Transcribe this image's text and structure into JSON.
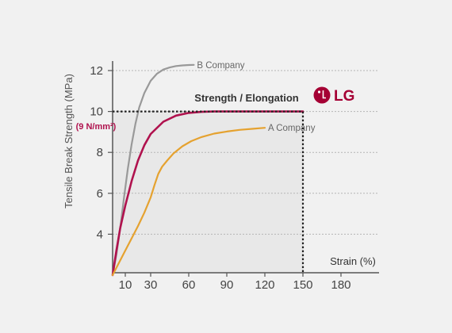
{
  "chart_data": {
    "type": "line",
    "title": "Strength / Elongation",
    "xlabel": "Strain (%)",
    "ylabel": "Tensile Break Strength (MPa)",
    "x_ticks": [
      10,
      30,
      60,
      90,
      120,
      150,
      180
    ],
    "y_ticks": [
      4,
      6,
      8,
      10,
      12
    ],
    "xlim": [
      0,
      180
    ],
    "ylim": [
      2,
      12.5
    ],
    "highlight": {
      "x": 150,
      "y": 10,
      "x_label": "150",
      "y_note": "(9 N/mm²)",
      "color": "#b0124e"
    },
    "logo": {
      "text": "LG",
      "color": "#a50034"
    },
    "series": [
      {
        "name": "B Company",
        "color": "#999999",
        "points": [
          [
            0,
            2
          ],
          [
            3,
            3
          ],
          [
            6,
            4.3
          ],
          [
            9,
            5.8
          ],
          [
            12,
            7.2
          ],
          [
            15,
            8.4
          ],
          [
            18,
            9.4
          ],
          [
            21,
            10.2
          ],
          [
            25,
            10.9
          ],
          [
            30,
            11.5
          ],
          [
            35,
            11.85
          ],
          [
            40,
            12.05
          ],
          [
            45,
            12.15
          ],
          [
            50,
            12.22
          ],
          [
            55,
            12.25
          ],
          [
            60,
            12.27
          ],
          [
            64,
            12.28
          ]
        ]
      },
      {
        "name": "",
        "color": "#b0124e",
        "points": [
          [
            0,
            2
          ],
          [
            3,
            3.2
          ],
          [
            6,
            4.3
          ],
          [
            10,
            5.4
          ],
          [
            15,
            6.6
          ],
          [
            20,
            7.6
          ],
          [
            25,
            8.35
          ],
          [
            30,
            8.9
          ],
          [
            40,
            9.5
          ],
          [
            50,
            9.8
          ],
          [
            60,
            9.93
          ],
          [
            70,
            9.98
          ],
          [
            80,
            10
          ],
          [
            100,
            10
          ],
          [
            120,
            10
          ],
          [
            150,
            10
          ]
        ]
      },
      {
        "name": "A Company",
        "color": "#e5a230",
        "points": [
          [
            0,
            2
          ],
          [
            5,
            2.6
          ],
          [
            10,
            3.2
          ],
          [
            15,
            3.8
          ],
          [
            20,
            4.4
          ],
          [
            25,
            5.05
          ],
          [
            30,
            5.8
          ],
          [
            33,
            6.4
          ],
          [
            36,
            6.95
          ],
          [
            39,
            7.3
          ],
          [
            43,
            7.6
          ],
          [
            48,
            7.95
          ],
          [
            55,
            8.3
          ],
          [
            62,
            8.55
          ],
          [
            70,
            8.75
          ],
          [
            80,
            8.92
          ],
          [
            90,
            9.02
          ],
          [
            100,
            9.1
          ],
          [
            110,
            9.15
          ],
          [
            120,
            9.2
          ]
        ]
      }
    ]
  }
}
